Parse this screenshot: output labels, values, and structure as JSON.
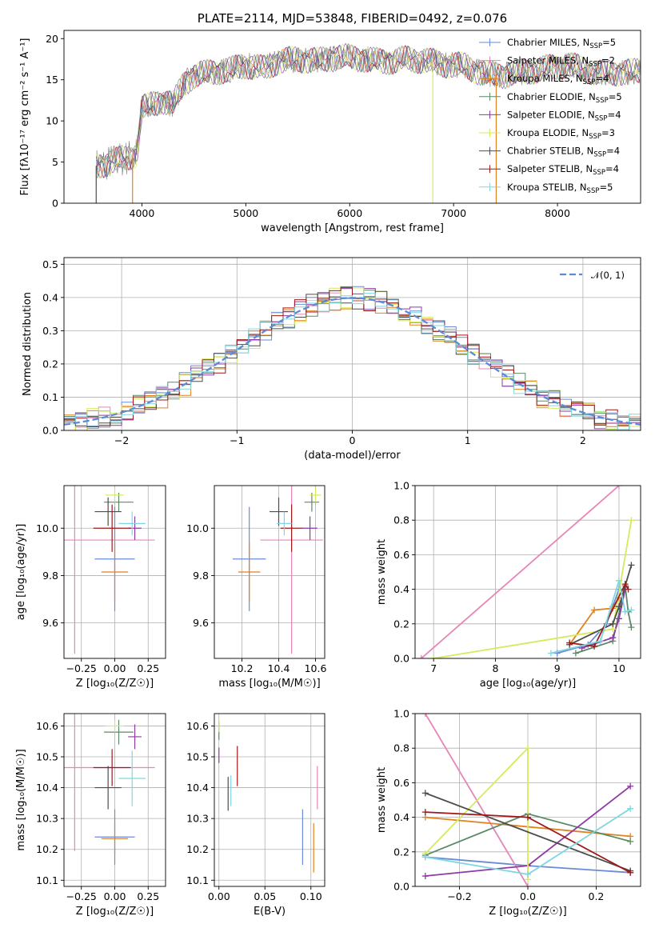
{
  "colors": {
    "chabrier_miles": "#6a8bd7",
    "salpeter_miles": "#e686b8",
    "kroupa_miles": "#e2811f",
    "chabrier_elodie": "#5b8a66",
    "salpeter_elodie": "#8e3aa6",
    "kroupa_elodie": "#d6ea5a",
    "chabrier_stelib": "#4d4d4d",
    "salpeter_stelib": "#a01818",
    "kroupa_stelib": "#7fd6e1",
    "normal_curve": "#5b8bd6",
    "spectrum": "#777777"
  },
  "chart_data": [
    {
      "type": "line",
      "title": "PLATE=2114, MJD=53848, FIBERID=0492, z=0.076",
      "xlabel": "wavelength [Angstrom, rest frame]",
      "ylabel": "Flux [fλ10⁻¹⁷ erg cm⁻² s⁻¹ A⁻¹]",
      "xlim": [
        3250,
        8800
      ],
      "ylim": [
        0,
        21
      ],
      "xticks": [
        "4000",
        "5000",
        "6000",
        "7000",
        "8000"
      ],
      "yticks": [
        "0",
        "5",
        "10",
        "15",
        "20"
      ],
      "legend_position": "upper-right",
      "legend": [
        {
          "label": "Chabrier MILES, N",
          "sub": "SSP",
          "tail": "=5"
        },
        {
          "label": "Salpeter MILES, N",
          "sub": "SSP",
          "tail": "=2"
        },
        {
          "label": "Kroupa MILES, N",
          "sub": "SSP",
          "tail": "=4"
        },
        {
          "label": "Chabrier ELODIE, N",
          "sub": "SSP",
          "tail": "=5"
        },
        {
          "label": "Salpeter ELODIE, N",
          "sub": "SSP",
          "tail": "=4"
        },
        {
          "label": "Kroupa ELODIE, N",
          "sub": "SSP",
          "tail": "=3"
        },
        {
          "label": "Chabrier STELIB, N",
          "sub": "SSP",
          "tail": "=4"
        },
        {
          "label": "Salpeter STELIB, N",
          "sub": "SSP",
          "tail": "=4"
        },
        {
          "label": "Kroupa STELIB, N",
          "sub": "SSP",
          "tail": "=5"
        }
      ],
      "continuum": {
        "x": [
          3550,
          3700,
          3850,
          3950,
          4000,
          4100,
          4200,
          4300,
          4400,
          4500,
          4700,
          4861,
          5000,
          5175,
          5300,
          5500,
          5700,
          5900,
          6100,
          6300,
          6563,
          6700,
          6900,
          7100,
          7300,
          7500,
          7800,
          8100,
          8400,
          8800
        ],
        "y": [
          4.5,
          5.0,
          5.5,
          6.0,
          11.5,
          12.0,
          12.5,
          12.0,
          14.5,
          15.5,
          16.0,
          16.2,
          16.8,
          16.3,
          17.2,
          17.5,
          17.3,
          17.8,
          17.6,
          17.2,
          17.5,
          17.4,
          16.9,
          16.7,
          15.7,
          15.6,
          16.2,
          16.8,
          15.8,
          16.0
        ]
      }
    },
    {
      "type": "area",
      "xlabel": "(data-model)/error",
      "ylabel": "Normed distribution",
      "xlim": [
        -2.5,
        2.5
      ],
      "ylim": [
        0,
        0.52
      ],
      "xticks": [
        "−2",
        "−1",
        "0",
        "1",
        "2"
      ],
      "yticks": [
        "0.0",
        "0.1",
        "0.2",
        "0.3",
        "0.4",
        "0.5"
      ],
      "legend_position": "upper-right",
      "legend": [
        {
          "label": "𝒩(0, 1)"
        }
      ],
      "bin_width": 0.1
    },
    {
      "type": "scatter",
      "xlabel": "Z [log₁₀(Z/Z☉)]",
      "ylabel": "age  [log₁₀(age/yr)]",
      "xlim": [
        -0.38,
        0.38
      ],
      "ylim": [
        9.45,
        10.18
      ],
      "xticks": [
        "−0.25",
        "0.00",
        "0.25"
      ],
      "yticks": [
        "9.6",
        "9.8",
        "10.0"
      ],
      "points": [
        {
          "x": 0.0,
          "y": 9.87,
          "xerr": 0.15,
          "yerr": 0.22,
          "series": "chabrier_miles"
        },
        {
          "x": -0.3,
          "y": 9.95,
          "xerr": 0.6,
          "yerr": 0.48,
          "series": "salpeter_miles"
        },
        {
          "x": 0.0,
          "y": 9.815,
          "xerr": 0.1,
          "yerr": 0.125,
          "series": "kroupa_miles"
        },
        {
          "x": 0.03,
          "y": 10.11,
          "xerr": 0.11,
          "yerr": 0.04,
          "series": "chabrier_elodie"
        },
        {
          "x": 0.15,
          "y": 10.0,
          "xerr": 0.05,
          "yerr": 0.05,
          "series": "salpeter_elodie"
        },
        {
          "x": 0.0,
          "y": 10.14,
          "xerr": 0.07,
          "yerr": 0.03,
          "series": "kroupa_elodie"
        },
        {
          "x": -0.05,
          "y": 10.07,
          "xerr": 0.1,
          "yerr": 0.06,
          "series": "chabrier_stelib"
        },
        {
          "x": -0.02,
          "y": 10.0,
          "xerr": 0.14,
          "yerr": 0.1,
          "series": "salpeter_stelib"
        },
        {
          "x": 0.13,
          "y": 10.02,
          "xerr": 0.1,
          "yerr": 0.05,
          "series": "kroupa_stelib"
        }
      ]
    },
    {
      "type": "scatter",
      "xlabel": "mass [log₁₀(M/M☉)]",
      "xlim": [
        10.05,
        10.65
      ],
      "ylim": [
        9.45,
        10.18
      ],
      "xticks": [
        "10.2",
        "10.4",
        "10.6"
      ],
      "yticks": [
        "9.6",
        "9.8",
        "10.0"
      ],
      "points": [
        {
          "x": 10.24,
          "y": 9.87,
          "xerr": 0.09,
          "yerr": 0.22,
          "series": "chabrier_miles"
        },
        {
          "x": 10.47,
          "y": 9.95,
          "xerr": 0.17,
          "yerr": 0.48,
          "series": "salpeter_miles"
        },
        {
          "x": 10.24,
          "y": 9.815,
          "xerr": 0.06,
          "yerr": 0.125,
          "series": "kroupa_miles"
        },
        {
          "x": 10.58,
          "y": 10.11,
          "xerr": 0.04,
          "yerr": 0.04,
          "series": "chabrier_elodie"
        },
        {
          "x": 10.57,
          "y": 10.0,
          "xerr": 0.04,
          "yerr": 0.05,
          "series": "salpeter_elodie"
        },
        {
          "x": 10.6,
          "y": 10.14,
          "xerr": 0.03,
          "yerr": 0.03,
          "series": "kroupa_elodie"
        },
        {
          "x": 10.4,
          "y": 10.07,
          "xerr": 0.05,
          "yerr": 0.06,
          "series": "chabrier_stelib"
        },
        {
          "x": 10.47,
          "y": 10.0,
          "xerr": 0.06,
          "yerr": 0.1,
          "series": "salpeter_stelib"
        },
        {
          "x": 10.43,
          "y": 10.02,
          "xerr": 0.04,
          "yerr": 0.05,
          "series": "kroupa_stelib"
        }
      ]
    },
    {
      "type": "line",
      "xlabel": "age  [log₁₀(age/yr)]",
      "ylabel": "mass weight",
      "xlim": [
        6.7,
        10.35
      ],
      "ylim": [
        0,
        1
      ],
      "xticks": [
        "7",
        "8",
        "9",
        "10"
      ],
      "yticks": [
        "0.0",
        "0.2",
        "0.4",
        "0.6",
        "0.8",
        "1.0"
      ],
      "series": [
        {
          "key": "chabrier_miles",
          "x": [
            9.0,
            9.5,
            9.8,
            9.9,
            10.0
          ],
          "y": [
            0.03,
            0.08,
            0.2,
            0.3,
            0.4
          ]
        },
        {
          "key": "salpeter_miles",
          "x": [
            6.8,
            10.0
          ],
          "y": [
            0.0,
            1.0
          ]
        },
        {
          "key": "kroupa_miles",
          "x": [
            9.2,
            9.6,
            9.9,
            10.0
          ],
          "y": [
            0.08,
            0.28,
            0.29,
            0.35
          ]
        },
        {
          "key": "chabrier_elodie",
          "x": [
            9.3,
            9.9,
            10.1,
            10.15,
            10.2
          ],
          "y": [
            0.03,
            0.1,
            0.42,
            0.27,
            0.18
          ]
        },
        {
          "key": "salpeter_elodie",
          "x": [
            9.4,
            9.9,
            10.0,
            10.1
          ],
          "y": [
            0.06,
            0.12,
            0.23,
            0.4
          ]
        },
        {
          "key": "kroupa_elodie",
          "x": [
            7.0,
            9.9,
            10.2
          ],
          "y": [
            0.0,
            0.17,
            0.8
          ]
        },
        {
          "key": "chabrier_stelib",
          "x": [
            9.2,
            9.9,
            10.0,
            10.2
          ],
          "y": [
            0.08,
            0.2,
            0.3,
            0.54
          ]
        },
        {
          "key": "salpeter_stelib",
          "x": [
            9.2,
            9.6,
            10.1,
            10.15
          ],
          "y": [
            0.09,
            0.07,
            0.43,
            0.4
          ]
        },
        {
          "key": "kroupa_stelib",
          "x": [
            8.9,
            9.7,
            10.0,
            10.1,
            10.2
          ],
          "y": [
            0.03,
            0.1,
            0.45,
            0.27,
            0.28
          ]
        }
      ]
    },
    {
      "type": "scatter",
      "xlabel": "Z [log₁₀(Z/Z☉)]",
      "ylabel": "mass [log₁₀(M/M☉)]",
      "xlim": [
        -0.38,
        0.38
      ],
      "ylim": [
        10.08,
        10.64
      ],
      "xticks": [
        "−0.25",
        "0.00",
        "0.25"
      ],
      "yticks": [
        "10.1",
        "10.2",
        "10.3",
        "10.4",
        "10.5",
        "10.6"
      ],
      "points": [
        {
          "x": 0.0,
          "y": 10.24,
          "xerr": 0.15,
          "yerr": 0.09,
          "series": "chabrier_miles"
        },
        {
          "x": -0.3,
          "y": 10.465,
          "xerr": 0.6,
          "yerr": 0.27,
          "series": "salpeter_miles"
        },
        {
          "x": 0.0,
          "y": 10.235,
          "xerr": 0.1,
          "yerr": 0.05,
          "series": "kroupa_miles"
        },
        {
          "x": 0.03,
          "y": 10.58,
          "xerr": 0.11,
          "yerr": 0.04,
          "series": "chabrier_elodie"
        },
        {
          "x": 0.15,
          "y": 10.565,
          "xerr": 0.05,
          "yerr": 0.04,
          "series": "salpeter_elodie"
        },
        {
          "x": 0.0,
          "y": 10.6,
          "xerr": 0.07,
          "yerr": 0.02,
          "series": "kroupa_elodie"
        },
        {
          "x": -0.05,
          "y": 10.4,
          "xerr": 0.1,
          "yerr": 0.07,
          "series": "chabrier_stelib"
        },
        {
          "x": -0.02,
          "y": 10.465,
          "xerr": 0.14,
          "yerr": 0.06,
          "series": "salpeter_stelib"
        },
        {
          "x": 0.13,
          "y": 10.43,
          "xerr": 0.1,
          "yerr": 0.09,
          "series": "kroupa_stelib"
        }
      ]
    },
    {
      "type": "scatter",
      "xlabel": "E(B-V)",
      "xlim": [
        -0.005,
        0.115
      ],
      "ylim": [
        10.08,
        10.64
      ],
      "xticks": [
        "0.00",
        "0.05",
        "0.10"
      ],
      "yticks": [
        "10.1",
        "10.2",
        "10.3",
        "10.4",
        "10.5",
        "10.6"
      ],
      "points": [
        {
          "x": 0.091,
          "y": 10.24,
          "xerr": 0,
          "yerr": 0.09,
          "series": "chabrier_miles"
        },
        {
          "x": 0.107,
          "y": 10.4,
          "xerr": 0,
          "yerr": 0.07,
          "series": "salpeter_miles"
        },
        {
          "x": 0.103,
          "y": 10.205,
          "xerr": 0,
          "yerr": 0.08,
          "series": "kroupa_miles"
        },
        {
          "x": 0.0,
          "y": 10.585,
          "xerr": 0,
          "yerr": 0.03,
          "series": "chabrier_elodie"
        },
        {
          "x": 0.0,
          "y": 10.505,
          "xerr": 0,
          "yerr": 0.025,
          "series": "salpeter_elodie"
        },
        {
          "x": 0.0,
          "y": 10.6,
          "xerr": 0,
          "yerr": 0.02,
          "series": "kroupa_elodie"
        },
        {
          "x": 0.01,
          "y": 10.38,
          "xerr": 0,
          "yerr": 0.055,
          "series": "chabrier_stelib"
        },
        {
          "x": 0.02,
          "y": 10.47,
          "xerr": 0,
          "yerr": 0.065,
          "series": "salpeter_stelib"
        },
        {
          "x": 0.013,
          "y": 10.39,
          "xerr": 0,
          "yerr": 0.05,
          "series": "kroupa_stelib"
        }
      ]
    },
    {
      "type": "line",
      "xlabel": "Z [log₁₀(Z/Z☉)]",
      "ylabel": "mass weight",
      "xlim": [
        -0.33,
        0.33
      ],
      "ylim": [
        0,
        1
      ],
      "xticks": [
        "−0.2",
        "0.0",
        "0.2"
      ],
      "yticks": [
        "0.0",
        "0.2",
        "0.4",
        "0.6",
        "0.8",
        "1.0"
      ],
      "series": [
        {
          "key": "chabrier_miles",
          "x": [
            -0.3,
            0.0,
            0.3
          ],
          "y": [
            0.17,
            0.12,
            0.08
          ]
        },
        {
          "key": "salpeter_miles",
          "x": [
            -0.3,
            0.0
          ],
          "y": [
            1.0,
            0.0
          ]
        },
        {
          "key": "kroupa_miles",
          "x": [
            -0.3,
            0.3
          ],
          "y": [
            0.4,
            0.29
          ]
        },
        {
          "key": "chabrier_elodie",
          "x": [
            -0.3,
            0.0,
            0.3
          ],
          "y": [
            0.18,
            0.42,
            0.26
          ]
        },
        {
          "key": "salpeter_elodie",
          "x": [
            -0.3,
            0.0,
            0.3
          ],
          "y": [
            0.06,
            0.12,
            0.58
          ]
        },
        {
          "key": "kroupa_elodie",
          "x": [
            -0.3,
            0.0,
            0.0
          ],
          "y": [
            0.19,
            0.8,
            0.04
          ]
        },
        {
          "key": "chabrier_stelib",
          "x": [
            -0.3,
            0.3
          ],
          "y": [
            0.54,
            0.09
          ]
        },
        {
          "key": "salpeter_stelib",
          "x": [
            -0.3,
            0.0,
            0.3
          ],
          "y": [
            0.43,
            0.4,
            0.08
          ]
        },
        {
          "key": "kroupa_stelib",
          "x": [
            -0.3,
            0.0,
            0.3
          ],
          "y": [
            0.17,
            0.07,
            0.45
          ]
        }
      ]
    }
  ]
}
